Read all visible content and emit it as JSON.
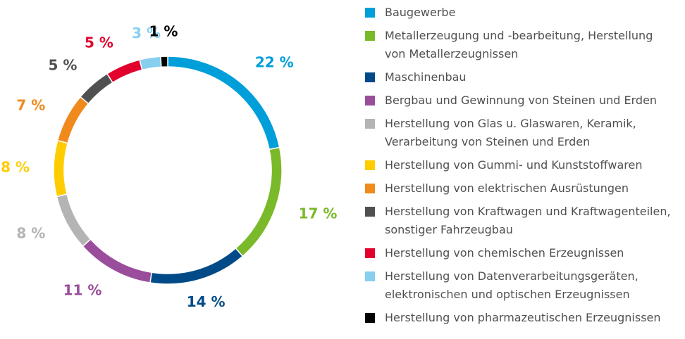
{
  "chart_data": {
    "type": "donut",
    "categories": [
      "Baugewerbe",
      "Metallerzeugung und -bearbeitung, Herstellung von Metallerzeugnissen",
      "Maschinenbau",
      "Bergbau und Gewinnung von Steinen und Erden",
      "Herstellung von Glas u. Glaswaren, Keramik, Verarbeitung von Steinen und Erden",
      "Herstellung von Gummi- und Kunststoffwaren",
      "Herstellung von elektrischen Ausrüstungen",
      "Herstellung von Kraftwagen und Kraftwagenteilen, sonstiger Fahrzeugbau",
      "Herstellung von chemischen Erzeugnissen",
      "Herstellung von Datenverarbeitungsgeräten, elektronischen und optischen Erzeugnissen",
      "Herstellung von pharmazeutischen Erzeugnissen"
    ],
    "values": [
      22,
      17,
      14,
      11,
      8,
      8,
      7,
      5,
      5,
      3,
      1
    ],
    "value_labels": [
      "22 %",
      "17 %",
      "14 %",
      "11 %",
      "8 %",
      "8 %",
      "7 %",
      "5 %",
      "5 %",
      "3 %",
      "1 %"
    ],
    "colors": [
      "#009fda",
      "#7ab929",
      "#004b87",
      "#9a4d9b",
      "#b4b4b4",
      "#ffcc00",
      "#f08a1d",
      "#505050",
      "#e2002d",
      "#87cfef",
      "#000000"
    ],
    "legend": "right"
  }
}
